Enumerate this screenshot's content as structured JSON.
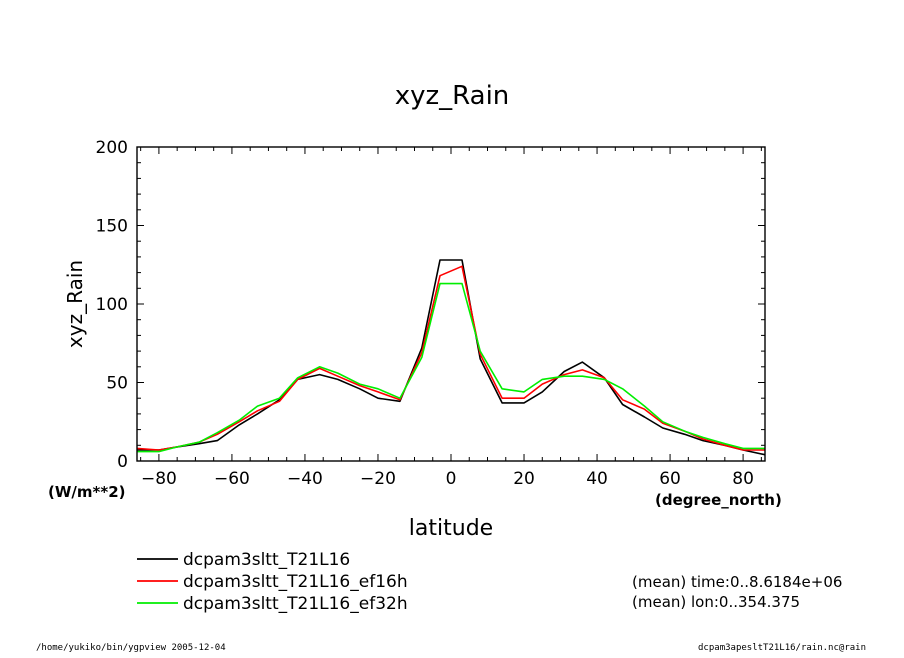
{
  "chart_data": {
    "type": "line",
    "title": "xyz_Rain",
    "xlabel": "latitude",
    "ylabel": "xyz_Rain",
    "y_unit": "(W/m**2)",
    "x_unit": "(degree_north)",
    "xlim": [
      -86,
      86
    ],
    "ylim": [
      0,
      200
    ],
    "x_ticks": [
      -80,
      -60,
      -40,
      -20,
      0,
      20,
      40,
      60,
      80
    ],
    "y_ticks": [
      0,
      50,
      100,
      150,
      200
    ],
    "x_tick_labels": [
      "−80",
      "−60",
      "−40",
      "−20",
      "0",
      "20",
      "40",
      "60",
      "80"
    ],
    "y_tick_labels": [
      "0",
      "50",
      "100",
      "150",
      "200"
    ],
    "grid": false,
    "legend_position": "bottom-left, below plot",
    "x": [
      -86,
      -80,
      -75,
      -69,
      -64,
      -58,
      -53,
      -47,
      -42,
      -36,
      -31,
      -25,
      -20,
      -14,
      -8,
      -3,
      3,
      8,
      14,
      20,
      25,
      31,
      36,
      42,
      47,
      53,
      58,
      64,
      69,
      75,
      80,
      86
    ],
    "series": [
      {
        "name": "dcpam3sltt_T21L16",
        "color": "#000000",
        "values": [
          7,
          7,
          9,
          11,
          13,
          23,
          30,
          39,
          52,
          55,
          52,
          46,
          40,
          38,
          72,
          128,
          128,
          65,
          37,
          37,
          44,
          57,
          63,
          53,
          36,
          28,
          21,
          17,
          13,
          10,
          7,
          4
        ]
      },
      {
        "name": "dcpam3sltt_T21L16_ef16h",
        "color": "#ff0000",
        "values": [
          8,
          7,
          9,
          12,
          17,
          25,
          32,
          38,
          52,
          59,
          54,
          48,
          44,
          39,
          69,
          118,
          124,
          68,
          40,
          40,
          49,
          55,
          58,
          53,
          39,
          33,
          24,
          19,
          14,
          10,
          7,
          7
        ]
      },
      {
        "name": "dcpam3sltt_T21L16_ef32h",
        "color": "#00ee00",
        "values": [
          6,
          6,
          9,
          12,
          18,
          26,
          35,
          40,
          53,
          60,
          56,
          49,
          46,
          40,
          66,
          113,
          113,
          70,
          46,
          44,
          52,
          54,
          54,
          52,
          46,
          35,
          25,
          19,
          15,
          11,
          8,
          8
        ]
      }
    ],
    "annotations": {
      "mean_time": "(mean) time:0..8.6184e+06",
      "mean_lon": "(mean) lon:0..354.375"
    }
  },
  "footer": {
    "left": "/home/yukiko/bin/ygpview  2005-12-04",
    "right": "dcpam3apesltT21L16/rain.nc@rain"
  }
}
